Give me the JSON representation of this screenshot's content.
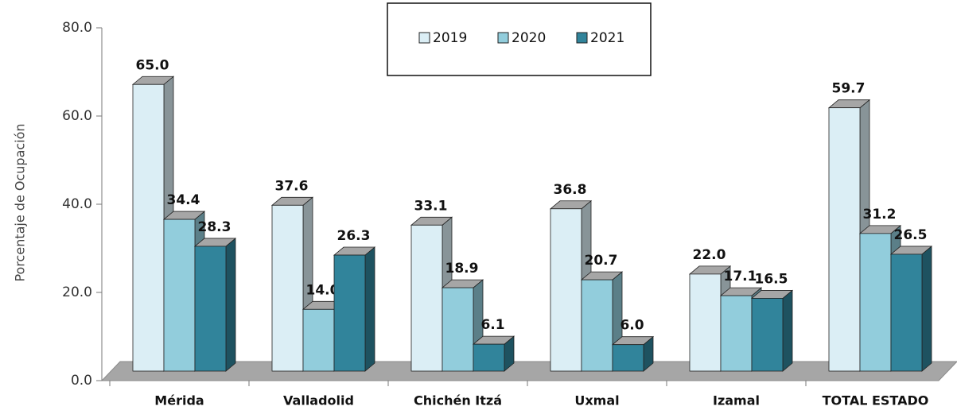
{
  "chart_data": {
    "type": "bar3d",
    "y_label": "Porcentaje de Ocupación",
    "categories": [
      "Mérida",
      "Valladolid",
      "Chichén Itzá",
      "Uxmal",
      "Izamal",
      "TOTAL ESTADO"
    ],
    "series": [
      {
        "name": "2019",
        "color": "#dbeef5",
        "values": [
          65.0,
          37.6,
          33.1,
          36.8,
          22.0,
          59.7
        ],
        "value_labels": [
          "65.0",
          "37.6",
          "33.1",
          "36.8",
          "22.0",
          "59.7"
        ]
      },
      {
        "name": "2020",
        "color": "#92cddc",
        "values": [
          34.4,
          14.0,
          18.9,
          20.7,
          17.1,
          31.2
        ],
        "value_labels": [
          "34.4",
          "14.0",
          "18.9",
          "20.7",
          "17.1",
          "31.2"
        ]
      },
      {
        "name": "2021",
        "color": "#31849b",
        "values": [
          28.3,
          26.3,
          6.1,
          6.0,
          16.5,
          26.5
        ],
        "value_labels": [
          "28.3",
          "26.3",
          "6.1",
          "6.0",
          "16.5",
          "26.5"
        ]
      }
    ],
    "ylim": [
      0,
      80
    ],
    "yticks": [
      {
        "value": 0,
        "label": "0.0"
      },
      {
        "value": 20,
        "label": "20.0"
      },
      {
        "value": 40,
        "label": "40.0"
      },
      {
        "value": 60,
        "label": "60.0"
      },
      {
        "value": 80,
        "label": "80.0"
      }
    ],
    "legend": "top"
  }
}
